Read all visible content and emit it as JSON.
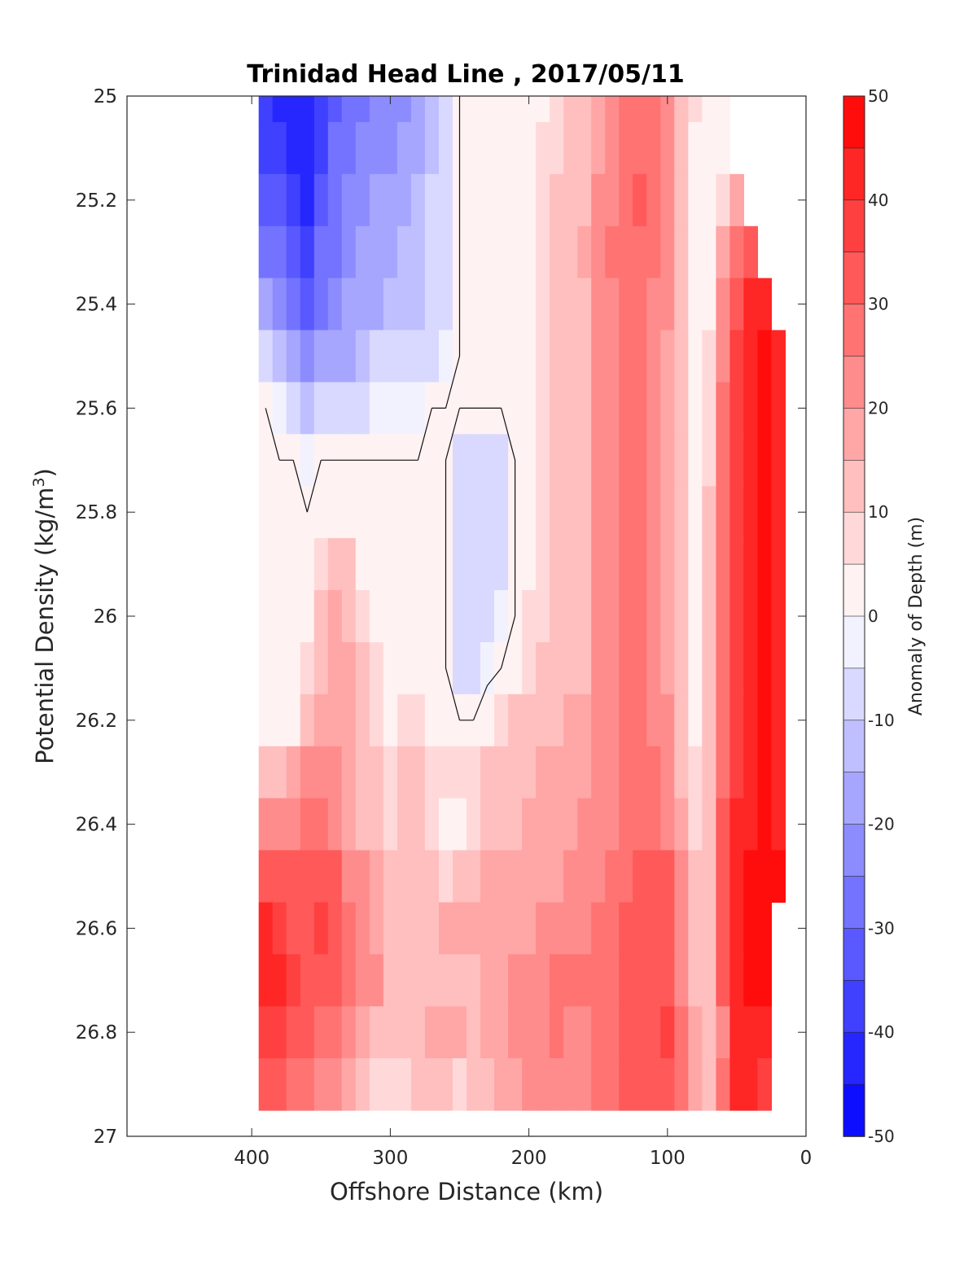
{
  "chart_data": {
    "type": "heatmap",
    "title": "Trinidad Head Line , 2017/05/11",
    "xlabel": "Offshore Distance (km)",
    "ylabel": "Potential Density (kg/m³)",
    "ylabel_main": "Potential Density (kg/m",
    "ylabel_sup": "3",
    "ylabel_close": ")",
    "colorbar_label": "Anomaly of Depth (m)",
    "xlim": [
      490,
      0
    ],
    "ylim": [
      25,
      27
    ],
    "x_ticks": [
      "400",
      "300",
      "200",
      "100",
      "0"
    ],
    "y_ticks": [
      "25",
      "25.2",
      "25.4",
      "25.6",
      "25.8",
      "26",
      "26.2",
      "26.4",
      "26.6",
      "26.8",
      "27"
    ],
    "colorbar_ticks": [
      "50",
      "40",
      "30",
      "20",
      "10",
      "0",
      "-10",
      "-20",
      "-30",
      "-40",
      "-50"
    ],
    "color_limits": [
      -50,
      50
    ],
    "contour_levels_step": 5,
    "zero_contour": true,
    "grid": false,
    "colormap": {
      "negative": "#0000ff",
      "zero": "#ffffff",
      "positive": "#ff0000"
    },
    "x": [
      390,
      380,
      370,
      360,
      350,
      340,
      330,
      320,
      310,
      300,
      290,
      280,
      270,
      260,
      250,
      240,
      230,
      220,
      210,
      200,
      190,
      180,
      170,
      160,
      150,
      140,
      130,
      120,
      110,
      100,
      90,
      80,
      70,
      60,
      50,
      40,
      30,
      20
    ],
    "y": [
      25.0,
      25.1,
      25.2,
      25.3,
      25.4,
      25.5,
      25.6,
      25.7,
      25.8,
      25.9,
      26.0,
      26.1,
      26.2,
      26.3,
      26.4,
      26.5,
      26.6,
      26.7,
      26.8,
      26.9
    ],
    "values": [
      [
        -40,
        -42,
        -44,
        -45,
        -40,
        -32,
        -28,
        -26,
        -24,
        -24,
        -22,
        -20,
        -14,
        -6,
        0,
        0,
        0,
        0,
        0,
        0,
        2,
        6,
        10,
        12,
        16,
        22,
        26,
        27,
        26,
        22,
        14,
        6,
        4,
        2,
        null,
        null,
        null,
        null
      ],
      [
        -36,
        -38,
        -42,
        -44,
        -38,
        -30,
        -26,
        -24,
        -22,
        -22,
        -20,
        -18,
        -12,
        -6,
        0,
        0,
        0,
        0,
        0,
        2,
        6,
        8,
        10,
        14,
        18,
        24,
        28,
        29,
        28,
        22,
        12,
        4,
        0,
        2,
        null,
        null,
        null,
        null
      ],
      [
        -32,
        -34,
        -38,
        -42,
        -34,
        -28,
        -24,
        -22,
        -20,
        -18,
        -16,
        -14,
        -10,
        -6,
        0,
        0,
        0,
        0,
        0,
        4,
        7,
        10,
        12,
        14,
        20,
        24,
        28,
        30,
        28,
        22,
        12,
        4,
        0,
        6,
        18,
        null,
        null,
        null
      ],
      [
        -26,
        -30,
        -34,
        -36,
        -30,
        -26,
        -22,
        -20,
        -18,
        -16,
        -14,
        -12,
        -10,
        -6,
        0,
        0,
        0,
        0,
        0,
        4,
        8,
        10,
        12,
        16,
        20,
        26,
        28,
        28,
        26,
        20,
        10,
        4,
        0,
        16,
        28,
        34,
        null,
        null
      ],
      [
        -18,
        -22,
        -28,
        -32,
        -28,
        -24,
        -20,
        -18,
        -16,
        -14,
        -14,
        -12,
        -10,
        -6,
        0,
        0,
        0,
        0,
        0,
        4,
        8,
        12,
        14,
        14,
        20,
        24,
        28,
        28,
        24,
        20,
        10,
        4,
        4,
        20,
        34,
        42,
        44,
        null
      ],
      [
        -8,
        -14,
        -20,
        -24,
        -20,
        -16,
        -16,
        -12,
        -10,
        -8,
        -8,
        -10,
        -8,
        -5,
        0,
        0,
        0,
        0,
        0,
        4,
        8,
        12,
        14,
        12,
        20,
        24,
        28,
        28,
        24,
        18,
        10,
        4,
        6,
        24,
        36,
        44,
        46,
        44
      ],
      [
        0,
        -4,
        -8,
        -12,
        -10,
        -8,
        -8,
        -6,
        -4,
        -4,
        -4,
        -2,
        0,
        0,
        0,
        0,
        0,
        0,
        0,
        4,
        8,
        12,
        12,
        12,
        20,
        24,
        28,
        28,
        22,
        18,
        10,
        4,
        8,
        26,
        38,
        44,
        46,
        44
      ],
      [
        4,
        0,
        0,
        -2,
        0,
        0,
        0,
        0,
        0,
        0,
        0,
        0,
        0,
        0,
        -6,
        -8,
        -8,
        -6,
        0,
        4,
        8,
        12,
        12,
        12,
        20,
        24,
        28,
        28,
        22,
        18,
        10,
        4,
        8,
        28,
        38,
        44,
        46,
        44
      ],
      [
        4,
        0,
        0,
        0,
        0,
        2,
        0,
        0,
        0,
        0,
        0,
        0,
        0,
        0,
        -8,
        -8,
        -10,
        -8,
        0,
        4,
        8,
        12,
        14,
        12,
        20,
        24,
        28,
        28,
        22,
        18,
        10,
        4,
        10,
        28,
        38,
        44,
        46,
        44
      ],
      [
        4,
        0,
        0,
        0,
        6,
        12,
        10,
        4,
        0,
        0,
        0,
        0,
        0,
        0,
        -8,
        -10,
        -10,
        -8,
        0,
        4,
        8,
        12,
        14,
        12,
        20,
        24,
        28,
        28,
        22,
        18,
        10,
        4,
        10,
        28,
        38,
        44,
        46,
        44
      ],
      [
        2,
        0,
        0,
        2,
        10,
        16,
        14,
        8,
        2,
        0,
        0,
        0,
        0,
        0,
        -8,
        -10,
        -8,
        -4,
        0,
        6,
        8,
        12,
        14,
        12,
        20,
        24,
        28,
        28,
        22,
        18,
        10,
        4,
        10,
        28,
        38,
        44,
        46,
        44
      ],
      [
        0,
        0,
        0,
        6,
        14,
        18,
        16,
        10,
        6,
        2,
        0,
        0,
        0,
        0,
        -6,
        -6,
        -2,
        0,
        2,
        6,
        10,
        12,
        14,
        14,
        20,
        24,
        28,
        28,
        22,
        18,
        10,
        4,
        10,
        28,
        38,
        44,
        46,
        44
      ],
      [
        2,
        0,
        4,
        12,
        16,
        18,
        16,
        12,
        8,
        4,
        6,
        6,
        4,
        0,
        0,
        0,
        4,
        8,
        10,
        10,
        12,
        14,
        16,
        16,
        20,
        24,
        28,
        28,
        24,
        20,
        12,
        4,
        10,
        28,
        38,
        44,
        46,
        44
      ],
      [
        10,
        12,
        16,
        20,
        22,
        20,
        18,
        14,
        10,
        8,
        10,
        10,
        8,
        6,
        6,
        8,
        10,
        12,
        14,
        14,
        16,
        16,
        18,
        18,
        20,
        24,
        28,
        28,
        26,
        22,
        14,
        6,
        12,
        28,
        38,
        44,
        46,
        44
      ],
      [
        24,
        24,
        24,
        26,
        26,
        22,
        18,
        14,
        10,
        8,
        10,
        10,
        8,
        4,
        4,
        6,
        10,
        12,
        14,
        16,
        16,
        16,
        18,
        20,
        22,
        24,
        28,
        28,
        28,
        24,
        16,
        8,
        14,
        30,
        40,
        44,
        46,
        44
      ],
      [
        34,
        32,
        30,
        32,
        34,
        30,
        24,
        20,
        16,
        12,
        12,
        12,
        10,
        8,
        10,
        14,
        16,
        18,
        18,
        18,
        18,
        18,
        20,
        22,
        24,
        26,
        28,
        30,
        32,
        30,
        22,
        12,
        14,
        30,
        40,
        46,
        48,
        46
      ],
      [
        40,
        38,
        34,
        34,
        36,
        32,
        26,
        22,
        18,
        14,
        12,
        14,
        12,
        16,
        18,
        16,
        16,
        18,
        18,
        18,
        20,
        22,
        22,
        24,
        26,
        28,
        30,
        32,
        34,
        34,
        24,
        14,
        12,
        30,
        44,
        48,
        48,
        null
      ],
      [
        44,
        40,
        36,
        34,
        34,
        32,
        28,
        24,
        20,
        14,
        12,
        10,
        10,
        10,
        12,
        14,
        16,
        18,
        20,
        22,
        24,
        28,
        28,
        26,
        26,
        28,
        30,
        32,
        34,
        34,
        24,
        14,
        10,
        30,
        44,
        48,
        48,
        null
      ],
      [
        36,
        38,
        34,
        30,
        28,
        26,
        24,
        18,
        14,
        10,
        10,
        12,
        16,
        18,
        16,
        14,
        16,
        18,
        20,
        22,
        24,
        26,
        24,
        24,
        26,
        28,
        30,
        32,
        34,
        36,
        28,
        16,
        10,
        24,
        40,
        44,
        40,
        null
      ],
      [
        30,
        30,
        28,
        26,
        22,
        20,
        16,
        12,
        8,
        8,
        8,
        10,
        12,
        10,
        8,
        12,
        14,
        16,
        18,
        20,
        22,
        24,
        22,
        24,
        26,
        28,
        30,
        32,
        34,
        34,
        28,
        18,
        14,
        28,
        40,
        40,
        38,
        null
      ]
    ]
  }
}
